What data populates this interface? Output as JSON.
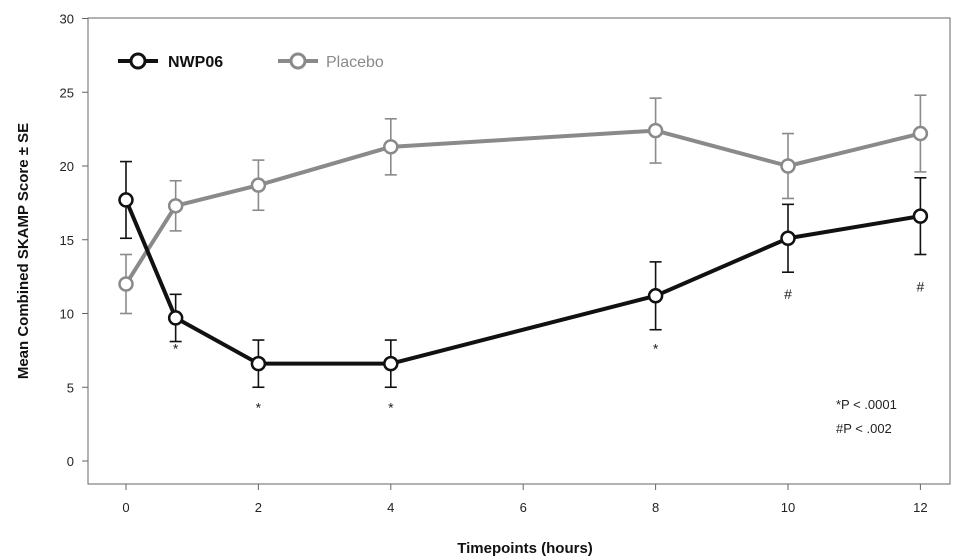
{
  "chart_data": {
    "type": "line",
    "title": "",
    "xlabel": "Timepoints (hours)",
    "ylabel": "Mean Combined SKAMP Score ± SE",
    "ylim": [
      0,
      30
    ],
    "yticks": [
      0,
      5,
      10,
      15,
      20,
      25,
      30
    ],
    "xticks": [
      {
        "label": "0",
        "x": 0
      },
      {
        "label": "2",
        "x": 2
      },
      {
        "label": "4",
        "x": 4
      },
      {
        "label": "6",
        "x": 6
      },
      {
        "label": "8",
        "x": 8
      },
      {
        "label": "10",
        "x": 10
      },
      {
        "label": "12",
        "x": 12
      }
    ],
    "grid": false,
    "legend_position": "top-left",
    "series": [
      {
        "name": "NWP06",
        "color": "#111111",
        "points": [
          {
            "x": 0,
            "y": 17.7,
            "err": 2.6
          },
          {
            "x": 0.75,
            "y": 9.7,
            "err": 1.6
          },
          {
            "x": 2,
            "y": 6.6,
            "err": 1.6
          },
          {
            "x": 4,
            "y": 6.6,
            "err": 1.6
          },
          {
            "x": 8,
            "y": 11.2,
            "err": 2.3
          },
          {
            "x": 10,
            "y": 15.1,
            "err": 2.3
          },
          {
            "x": 12,
            "y": 16.6,
            "err": 2.6
          }
        ]
      },
      {
        "name": "Placebo",
        "color": "#8a8a8a",
        "points": [
          {
            "x": 0,
            "y": 12.0,
            "err": 2.0
          },
          {
            "x": 0.75,
            "y": 17.3,
            "err": 1.7
          },
          {
            "x": 2,
            "y": 18.7,
            "err": 1.7
          },
          {
            "x": 4,
            "y": 21.3,
            "err": 1.9
          },
          {
            "x": 8,
            "y": 22.4,
            "err": 2.2
          },
          {
            "x": 10,
            "y": 20.0,
            "err": 2.2
          },
          {
            "x": 12,
            "y": 22.2,
            "err": 2.6
          }
        ]
      }
    ],
    "annotations": [
      {
        "text": "*",
        "x": 0.75,
        "y": 7.3
      },
      {
        "text": "*",
        "x": 2,
        "y": 3.3
      },
      {
        "text": "*",
        "x": 4,
        "y": 3.3
      },
      {
        "text": "*",
        "x": 8,
        "y": 7.3
      },
      {
        "text": "#",
        "x": 10,
        "y": 11.0
      },
      {
        "text": "#",
        "x": 12,
        "y": 11.5
      }
    ],
    "footnotes": [
      "*P < .0001",
      "#P < .002"
    ]
  }
}
